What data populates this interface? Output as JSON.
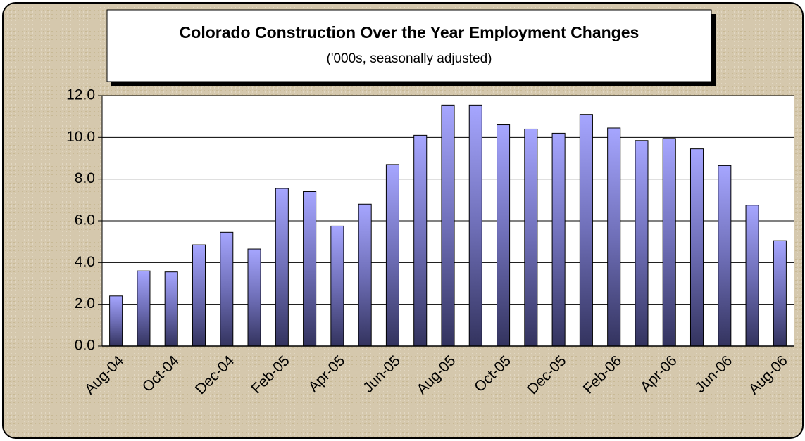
{
  "chart_data": {
    "type": "bar",
    "title": "Colorado Construction Over the Year Employment Changes",
    "subtitle": "('000s, seasonally adjusted)",
    "categories": [
      "Aug-04",
      null,
      "Oct-04",
      null,
      "Dec-04",
      null,
      "Feb-05",
      null,
      "Apr-05",
      null,
      "Jun-05",
      null,
      "Aug-05",
      null,
      "Oct-05",
      null,
      "Dec-05",
      null,
      "Feb-06",
      null,
      "Apr-06",
      null,
      "Jun-06",
      null,
      "Aug-06"
    ],
    "values": [
      2.4,
      3.6,
      3.55,
      4.85,
      5.45,
      4.65,
      7.55,
      7.4,
      5.75,
      6.8,
      8.7,
      10.1,
      11.55,
      11.55,
      10.6,
      10.4,
      10.2,
      11.1,
      10.45,
      9.85,
      9.95,
      9.45,
      8.65,
      6.75,
      5.05
    ],
    "color": "#9999ff",
    "ylim": [
      0,
      12
    ],
    "yticks": [
      {
        "value": 0,
        "label": "0.0"
      },
      {
        "value": 2,
        "label": "2.0"
      },
      {
        "value": 4,
        "label": "4.0"
      },
      {
        "value": 6,
        "label": "6.0"
      },
      {
        "value": 8,
        "label": "8.0"
      },
      {
        "value": 10,
        "label": "10.0"
      },
      {
        "value": 12,
        "label": "12.0"
      }
    ],
    "grid": true
  }
}
